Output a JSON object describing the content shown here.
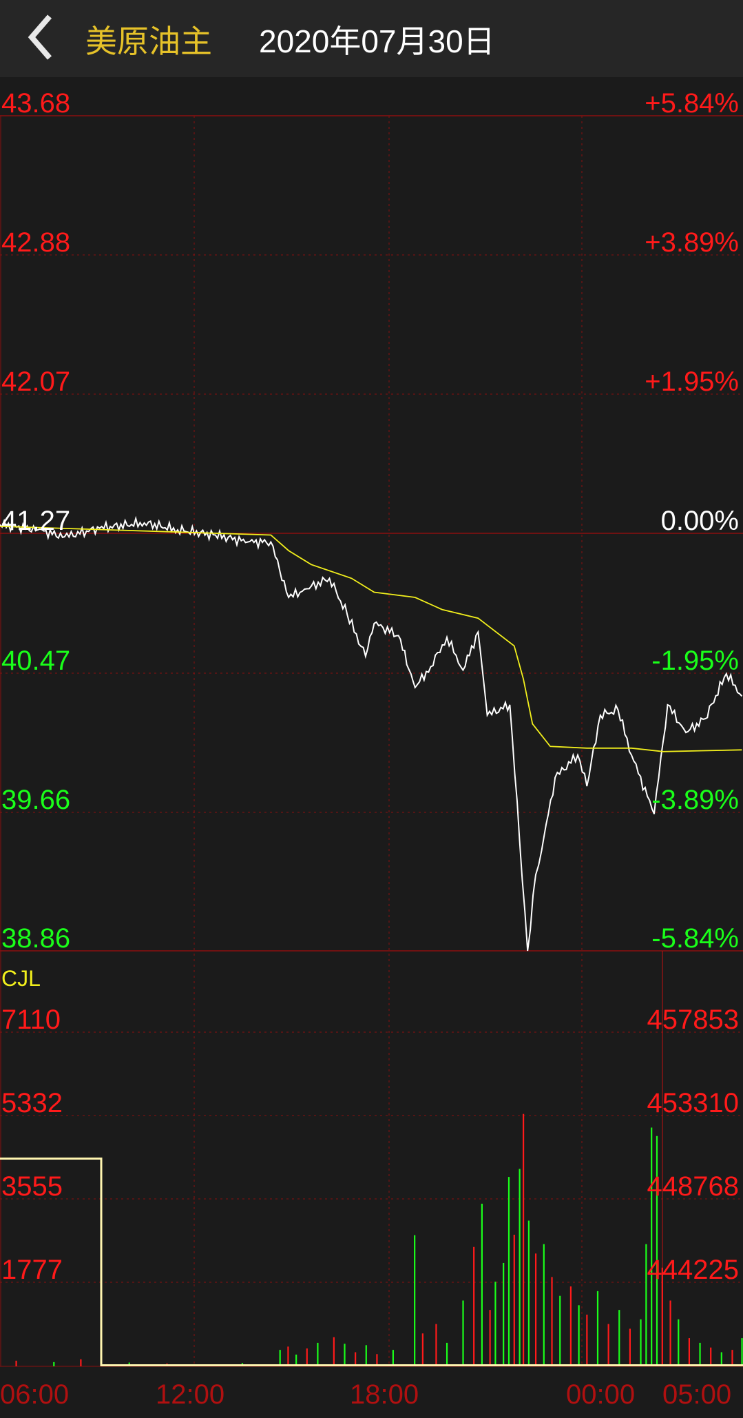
{
  "header": {
    "back_icon": "chevron-left-icon",
    "title": "美原油主",
    "date": "2020年07月30日"
  },
  "colors": {
    "up": "#ff1a1a",
    "down": "#1aff1a",
    "price_line": "#ffffff",
    "avg_line": "#f2ef1c",
    "grid": "#8b0f0f",
    "title": "#e6c229"
  },
  "chart_data": [
    {
      "type": "line",
      "title": "",
      "x_range": [
        "06:00",
        "05:00"
      ],
      "ylim": [
        38.86,
        43.68
      ],
      "reference_price": 41.27,
      "grid": true,
      "y_ticks_left": [
        "43.68",
        "42.88",
        "42.07",
        "41.27",
        "40.47",
        "39.66",
        "38.86"
      ],
      "y_ticks_right": [
        "+5.84%",
        "+3.89%",
        "+1.95%",
        "0.00%",
        "-1.95%",
        "-3.89%",
        "-5.84%"
      ],
      "series": [
        {
          "role": "price",
          "points": [
            [
              "06:00",
              41.32
            ],
            [
              "07:10",
              41.29
            ],
            [
              "08:00",
              41.25
            ],
            [
              "09:05",
              41.3
            ],
            [
              "10:28",
              41.33
            ],
            [
              "11:30",
              41.29
            ],
            [
              "12:40",
              41.26
            ],
            [
              "13:40",
              41.22
            ],
            [
              "14:23",
              41.22
            ],
            [
              "14:56",
              40.9
            ],
            [
              "15:30",
              40.95
            ],
            [
              "16:12",
              41.01
            ],
            [
              "16:45",
              40.8
            ],
            [
              "17:19",
              40.56
            ],
            [
              "17:35",
              40.75
            ],
            [
              "18:20",
              40.68
            ],
            [
              "18:51",
              40.38
            ],
            [
              "19:20",
              40.5
            ],
            [
              "19:50",
              40.67
            ],
            [
              "20:20",
              40.48
            ],
            [
              "20:48",
              40.7
            ],
            [
              "21:05",
              40.22
            ],
            [
              "21:47",
              40.28
            ],
            [
              "22:05",
              39.5
            ],
            [
              "22:20",
              38.86
            ],
            [
              "22:35",
              39.3
            ],
            [
              "22:46",
              39.44
            ],
            [
              "23:11",
              39.86
            ],
            [
              "23:53",
              39.99
            ],
            [
              "00:10",
              39.81
            ],
            [
              "00:35",
              40.22
            ],
            [
              "01:08",
              40.25
            ],
            [
              "01:33",
              39.99
            ],
            [
              "02:15",
              39.65
            ],
            [
              "02:40",
              40.28
            ],
            [
              "03:14",
              40.12
            ],
            [
              "03:50",
              40.2
            ],
            [
              "04:29",
              40.46
            ],
            [
              "04:58",
              40.33
            ]
          ]
        },
        {
          "role": "average",
          "points": [
            [
              "06:00",
              41.31
            ],
            [
              "14:23",
              41.26
            ],
            [
              "14:56",
              41.17
            ],
            [
              "15:38",
              41.09
            ],
            [
              "16:53",
              41.01
            ],
            [
              "17:35",
              40.93
            ],
            [
              "18:51",
              40.9
            ],
            [
              "19:41",
              40.83
            ],
            [
              "20:48",
              40.78
            ],
            [
              "21:55",
              40.62
            ],
            [
              "22:12",
              40.43
            ],
            [
              "22:29",
              40.17
            ],
            [
              "23:02",
              40.04
            ],
            [
              "00:10",
              40.03
            ],
            [
              "01:33",
              40.03
            ],
            [
              "02:32",
              40.01
            ],
            [
              "04:58",
              40.02
            ]
          ]
        }
      ]
    },
    {
      "type": "bar",
      "title": "CJL",
      "ylim_left": [
        0,
        7110
      ],
      "y_ticks_left": [
        "7110",
        "5332",
        "3555",
        "1777"
      ],
      "y_ticks_right": [
        "457853",
        "453310",
        "448768",
        "444225"
      ],
      "x_ticks": [
        "06:00",
        "12:00",
        "18:00",
        "00:00",
        "05:00"
      ],
      "open_interest_line": [
        [
          "06:00",
          450965
        ],
        [
          "09:08",
          450965
        ],
        [
          "09:08",
          439700
        ],
        [
          "05:00",
          439700
        ]
      ],
      "bars": [
        [
          "06:30",
          120,
          "r"
        ],
        [
          "07:40",
          90,
          "g"
        ],
        [
          "08:30",
          150,
          "r"
        ],
        [
          "10:00",
          80,
          "g"
        ],
        [
          "11:10",
          60,
          "r"
        ],
        [
          "13:30",
          70,
          "g"
        ],
        [
          "14:40",
          350,
          "g"
        ],
        [
          "14:55",
          420,
          "r"
        ],
        [
          "15:10",
          250,
          "g"
        ],
        [
          "15:30",
          380,
          "r"
        ],
        [
          "15:50",
          500,
          "g"
        ],
        [
          "16:20",
          620,
          "r"
        ],
        [
          "16:40",
          480,
          "g"
        ],
        [
          "17:00",
          300,
          "r"
        ],
        [
          "17:20",
          450,
          "g"
        ],
        [
          "17:40",
          260,
          "r"
        ],
        [
          "18:10",
          350,
          "g"
        ],
        [
          "18:50",
          2790,
          "g"
        ],
        [
          "19:05",
          700,
          "r"
        ],
        [
          "19:30",
          900,
          "r"
        ],
        [
          "19:50",
          500,
          "g"
        ],
        [
          "20:20",
          1400,
          "g"
        ],
        [
          "20:40",
          2540,
          "r"
        ],
        [
          "20:55",
          3460,
          "g"
        ],
        [
          "21:10",
          1200,
          "r"
        ],
        [
          "21:20",
          1800,
          "g"
        ],
        [
          "21:35",
          2200,
          "g"
        ],
        [
          "21:45",
          4030,
          "g"
        ],
        [
          "21:55",
          2800,
          "r"
        ],
        [
          "22:05",
          4200,
          "g"
        ],
        [
          "22:12",
          5370,
          "r"
        ],
        [
          "22:22",
          3100,
          "g"
        ],
        [
          "22:35",
          2400,
          "r"
        ],
        [
          "22:50",
          2600,
          "g"
        ],
        [
          "23:05",
          1900,
          "r"
        ],
        [
          "23:20",
          1500,
          "g"
        ],
        [
          "23:40",
          1700,
          "r"
        ],
        [
          "23:55",
          1300,
          "g"
        ],
        [
          "00:10",
          1100,
          "r"
        ],
        [
          "00:30",
          1600,
          "g"
        ],
        [
          "00:50",
          900,
          "r"
        ],
        [
          "01:10",
          1200,
          "g"
        ],
        [
          "01:30",
          800,
          "r"
        ],
        [
          "01:50",
          1000,
          "g"
        ],
        [
          "02:00",
          2600,
          "g"
        ],
        [
          "02:10",
          5080,
          "g"
        ],
        [
          "02:20",
          4900,
          "g"
        ],
        [
          "02:30",
          2100,
          "r"
        ],
        [
          "02:45",
          1400,
          "r"
        ],
        [
          "03:00",
          1000,
          "g"
        ],
        [
          "03:20",
          600,
          "r"
        ],
        [
          "03:40",
          500,
          "g"
        ],
        [
          "04:00",
          400,
          "r"
        ],
        [
          "04:20",
          300,
          "g"
        ],
        [
          "04:40",
          350,
          "r"
        ],
        [
          "04:58",
          600,
          "g"
        ]
      ]
    }
  ]
}
